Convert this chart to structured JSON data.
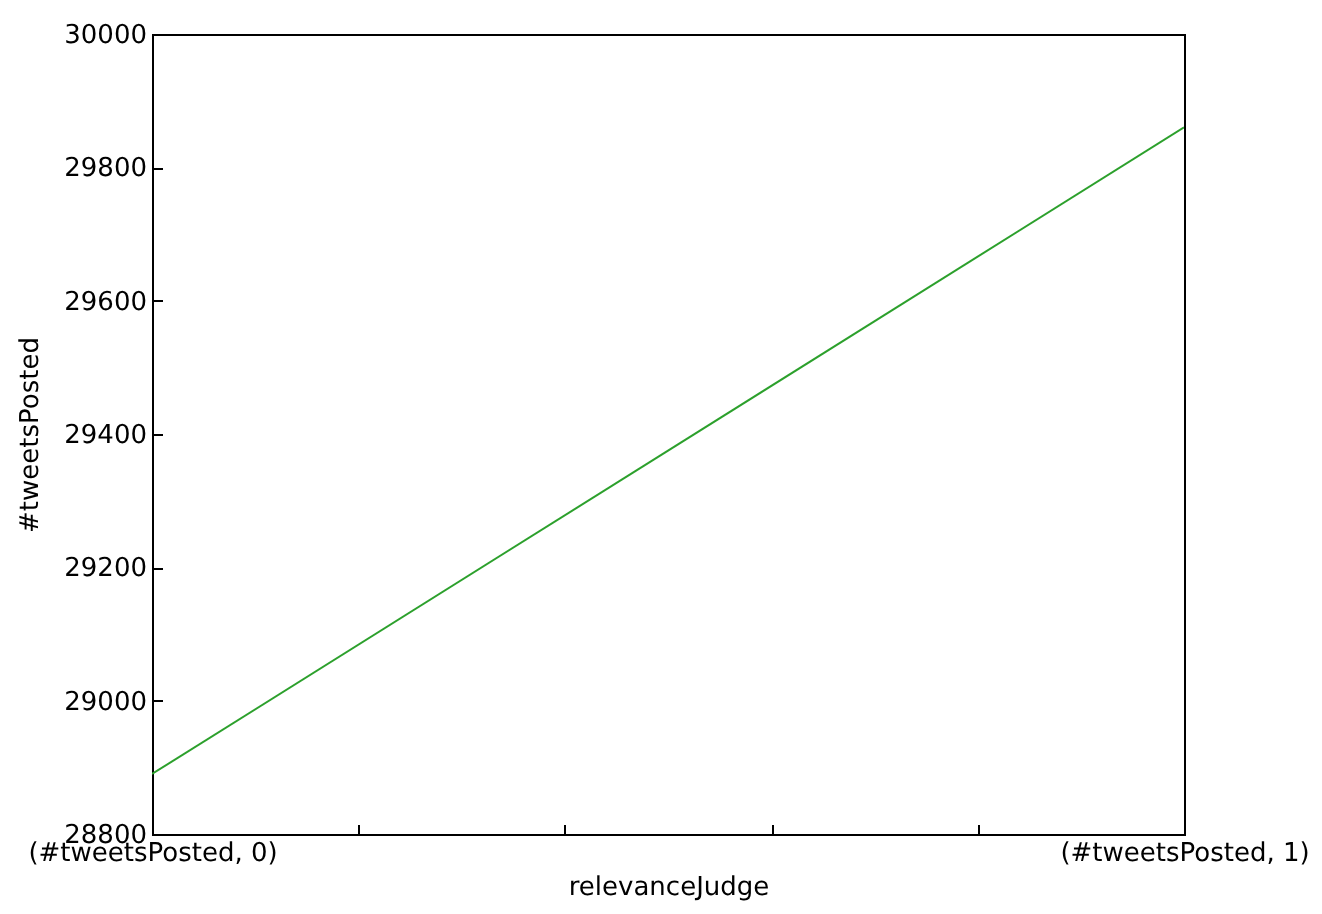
{
  "chart_data": {
    "type": "line",
    "xlabel": "relevanceJudge",
    "ylabel": "#tweetsPosted",
    "x": [
      0,
      1
    ],
    "series": [
      {
        "color": "#2ca02c",
        "values": [
          28890,
          29860
        ]
      }
    ],
    "xlim": [
      0,
      1
    ],
    "xticks": [
      {
        "value": 0,
        "label": "(#tweetsPosted, 0)"
      },
      {
        "value": 0.2,
        "label": null
      },
      {
        "value": 0.4,
        "label": null
      },
      {
        "value": 0.6,
        "label": null
      },
      {
        "value": 0.8,
        "label": null
      },
      {
        "value": 1,
        "label": "(#tweetsPosted, 1)"
      }
    ],
    "ylim": [
      28800,
      30000
    ],
    "yticks": [
      28800,
      29000,
      29200,
      29400,
      29600,
      29800,
      30000
    ],
    "grid": false,
    "marker": "none",
    "line_style": "solid"
  }
}
